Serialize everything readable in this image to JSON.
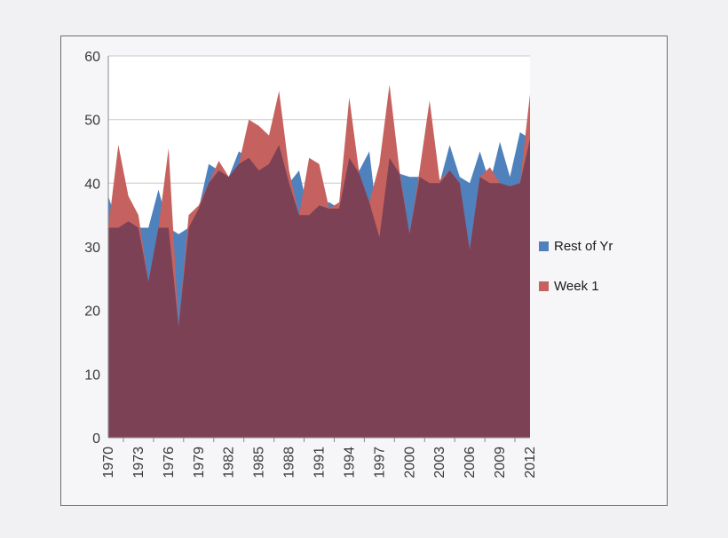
{
  "chart_data": {
    "type": "area",
    "title": "",
    "x": [
      1970,
      1971,
      1972,
      1973,
      1974,
      1975,
      1976,
      1977,
      1978,
      1979,
      1980,
      1981,
      1982,
      1983,
      1984,
      1985,
      1986,
      1987,
      1988,
      1989,
      1990,
      1991,
      1992,
      1993,
      1994,
      1995,
      1996,
      1997,
      1998,
      1999,
      2000,
      2001,
      2002,
      2003,
      2004,
      2005,
      2006,
      2007,
      2008,
      2009,
      2010,
      2011,
      2012
    ],
    "x_tick_labels": [
      "1970",
      "1973",
      "1976",
      "1979",
      "1982",
      "1985",
      "1988",
      "1991",
      "1994",
      "1997",
      "2000",
      "2003",
      "2006",
      "2009",
      "2012"
    ],
    "y_ticks": [
      0,
      10,
      20,
      30,
      40,
      50,
      60
    ],
    "ylim": [
      0,
      60
    ],
    "grid": true,
    "legend_position": "right",
    "overlap_color": "#7d4156",
    "plot_bg_color": "#ffffff",
    "series": [
      {
        "name": "Rest of Yr",
        "color": "#4f81bd",
        "values": [
          38,
          33,
          34,
          33,
          33,
          39,
          33,
          32,
          33,
          36,
          43,
          42,
          41,
          45,
          44,
          42,
          43,
          46,
          40,
          42,
          35,
          36.5,
          37,
          36,
          44,
          42,
          45,
          31.5,
          44,
          41.5,
          41,
          41,
          40,
          40,
          46,
          41,
          40,
          45,
          40,
          46.5,
          41,
          48,
          47
        ]
      },
      {
        "name": "Week 1",
        "color": "#c5625f",
        "values": [
          33,
          46,
          38,
          35,
          24.5,
          33,
          45.5,
          17.5,
          35,
          36.5,
          40,
          43.5,
          41,
          43,
          50,
          49,
          47.5,
          54.5,
          42,
          35,
          44,
          43,
          36,
          37,
          53.5,
          41.5,
          37,
          43,
          55.5,
          42,
          32,
          42,
          53,
          40.5,
          42,
          40,
          29.5,
          41,
          42.5,
          40,
          39.5,
          40,
          54
        ]
      }
    ]
  }
}
